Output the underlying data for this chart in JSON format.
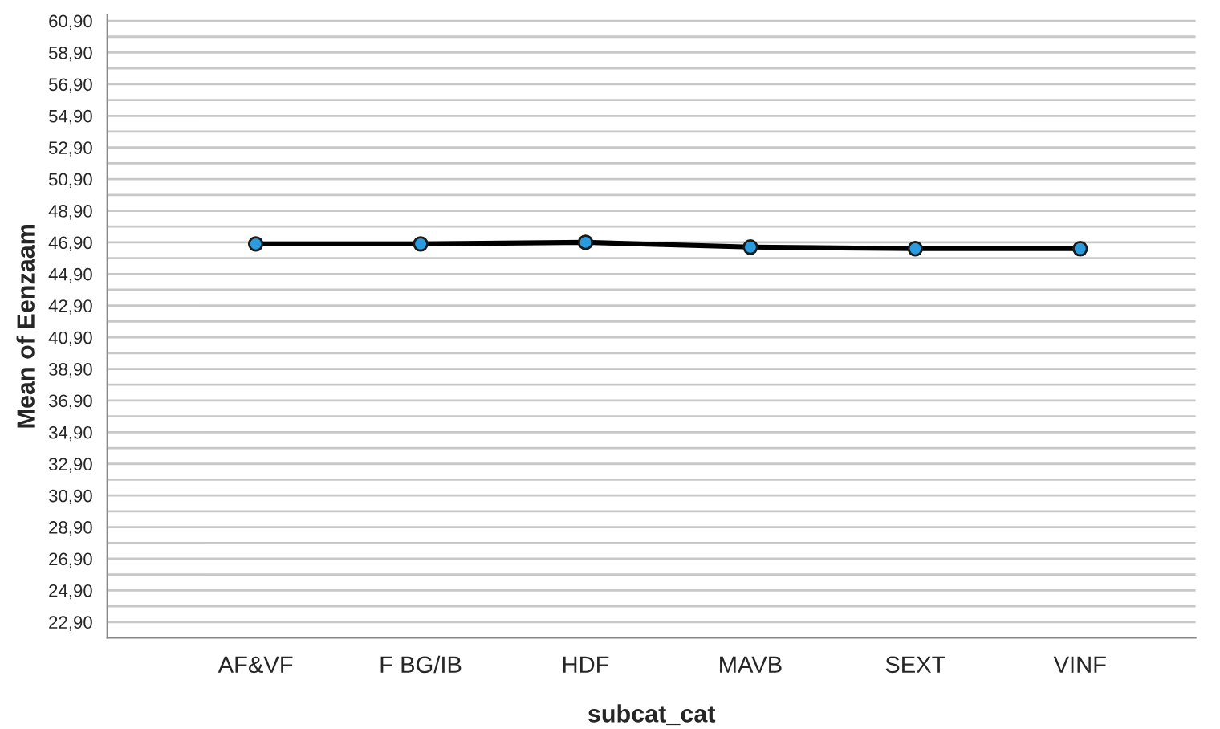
{
  "chart_data": {
    "type": "line",
    "xlabel": "subcat_cat",
    "ylabel": "Mean of Eenzaam",
    "categories": [
      "AF&VF",
      "F BG/IB",
      "HDF",
      "MAVB",
      "SEXT",
      "VINF"
    ],
    "series": [
      {
        "color": "#000000",
        "values": [
          46.8,
          46.8,
          46.9,
          46.6,
          46.5,
          46.5
        ]
      }
    ],
    "marker": "circle",
    "line_style": "solid",
    "grid": "y",
    "ylim": [
      21.9,
      61.3
    ],
    "yticks": [
      {
        "value": 22.9,
        "label": "22,90"
      },
      {
        "value": 23.9,
        "label": null
      },
      {
        "value": 24.9,
        "label": "24,90"
      },
      {
        "value": 25.9,
        "label": null
      },
      {
        "value": 26.9,
        "label": "26,90"
      },
      {
        "value": 27.9,
        "label": null
      },
      {
        "value": 28.9,
        "label": "28,90"
      },
      {
        "value": 29.9,
        "label": null
      },
      {
        "value": 30.9,
        "label": "30,90"
      },
      {
        "value": 31.9,
        "label": null
      },
      {
        "value": 32.9,
        "label": "32,90"
      },
      {
        "value": 33.9,
        "label": null
      },
      {
        "value": 34.9,
        "label": "34,90"
      },
      {
        "value": 35.9,
        "label": null
      },
      {
        "value": 36.9,
        "label": "36,90"
      },
      {
        "value": 37.9,
        "label": null
      },
      {
        "value": 38.9,
        "label": "38,90"
      },
      {
        "value": 39.9,
        "label": null
      },
      {
        "value": 40.9,
        "label": "40,90"
      },
      {
        "value": 41.9,
        "label": null
      },
      {
        "value": 42.9,
        "label": "42,90"
      },
      {
        "value": 43.9,
        "label": null
      },
      {
        "value": 44.9,
        "label": "44,90"
      },
      {
        "value": 45.9,
        "label": null
      },
      {
        "value": 46.9,
        "label": "46,90"
      },
      {
        "value": 47.9,
        "label": null
      },
      {
        "value": 48.9,
        "label": "48,90"
      },
      {
        "value": 49.9,
        "label": null
      },
      {
        "value": 50.9,
        "label": "50,90"
      },
      {
        "value": 51.9,
        "label": null
      },
      {
        "value": 52.9,
        "label": "52,90"
      },
      {
        "value": 53.9,
        "label": null
      },
      {
        "value": 54.9,
        "label": "54,90"
      },
      {
        "value": 55.9,
        "label": null
      },
      {
        "value": 56.9,
        "label": "56,90"
      },
      {
        "value": 57.9,
        "label": null
      },
      {
        "value": 58.9,
        "label": "58,90"
      },
      {
        "value": 59.9,
        "label": null
      },
      {
        "value": 60.9,
        "label": "60,90"
      }
    ]
  }
}
